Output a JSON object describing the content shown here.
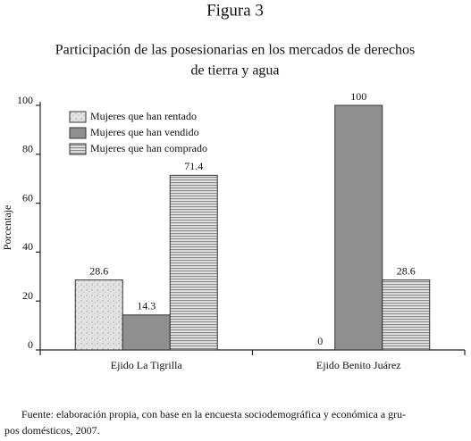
{
  "chart_data": {
    "type": "bar",
    "title": "Figura 3",
    "subtitle": [
      "Participación de las posesionarias en los mercados de derechos",
      "de tierra y agua"
    ],
    "y_label": "Porcentaje",
    "categories": [
      "Ejido La Tigrilla",
      "Ejido Benito Juárez"
    ],
    "series": [
      {
        "name": "Mujeres que han rentado",
        "color": "#d8d8d8",
        "pattern": "speckle",
        "values": [
          28.6,
          0
        ]
      },
      {
        "name": "Mujeres que han vendido",
        "color": "#8f8f8f",
        "pattern": "solid",
        "values": [
          14.3,
          100
        ]
      },
      {
        "name": "Mujeres que han comprado",
        "color": "#b5b5b5",
        "pattern": "stripes",
        "values": [
          71.4,
          28.6
        ]
      }
    ],
    "ylim": [
      0,
      100
    ],
    "yticks": [
      0,
      20,
      40,
      60,
      80,
      100
    ],
    "grid": false,
    "legend": "top-left",
    "source": [
      "Fuente: elaboración propia, con base en la encuesta sociodemográfica y económica a gru-",
      "pos domésticos, 2007."
    ]
  }
}
